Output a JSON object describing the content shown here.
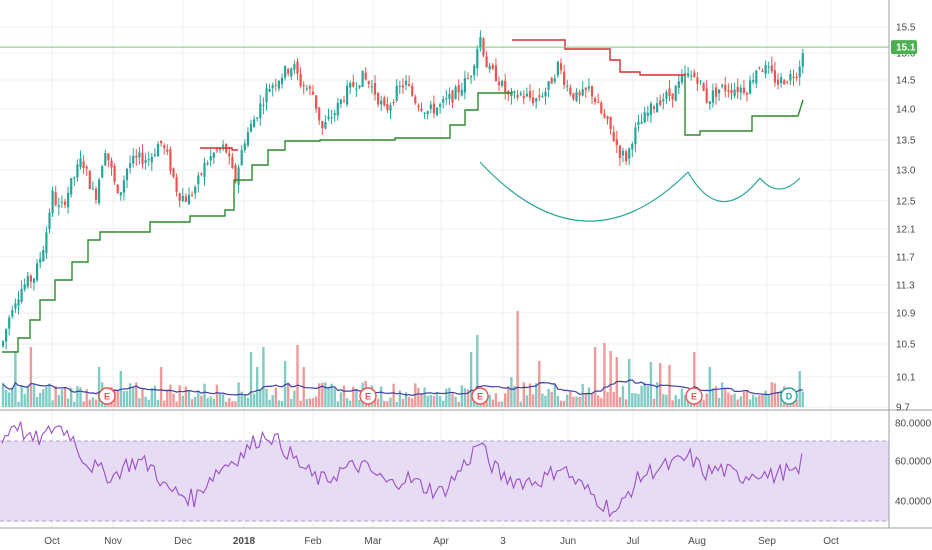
{
  "chart_data": {
    "type": "candlestick",
    "price_axis": {
      "ticks": [
        "15.5",
        "15.0",
        "14.5",
        "14.0",
        "13.5",
        "13.0",
        "12.5",
        "12.1",
        "11.7",
        "11.3",
        "10.9",
        "10.5",
        "10.1",
        "9.7"
      ],
      "current_price_label": "15.1",
      "current_price": 15.1
    },
    "rsi_axis": {
      "ticks": [
        "80.0000",
        "60.0000",
        "40.0000"
      ],
      "band_upper": 70,
      "band_lower": 30
    },
    "time_axis": [
      "Oct",
      "Nov",
      "Dec",
      "2018",
      "Feb",
      "Mar",
      "Apr",
      "3",
      "Jun",
      "Jul",
      "Aug",
      "Sep",
      "Oct"
    ],
    "time_axis_bold": [
      "2018"
    ],
    "price_series_approx": [
      {
        "month": "Oct",
        "close": 13.2
      },
      {
        "month": "Nov",
        "close": 13.5
      },
      {
        "month": "Dec",
        "close": 12.6
      },
      {
        "month": "2018",
        "close": 13.7
      },
      {
        "month": "Feb",
        "close": 14.6
      },
      {
        "month": "Mar",
        "close": 14.4
      },
      {
        "month": "Apr",
        "close": 14.2
      },
      {
        "month": "3",
        "close": 14.5
      },
      {
        "month": "Jun",
        "close": 14.4
      },
      {
        "month": "Jul",
        "close": 13.6
      },
      {
        "month": "Aug",
        "close": 14.5
      },
      {
        "month": "Sep",
        "close": 14.7
      },
      {
        "month": "end",
        "close": 15.1
      }
    ],
    "events": [
      {
        "label": "E",
        "kind": "earnings"
      },
      {
        "label": "E",
        "kind": "earnings"
      },
      {
        "label": "E",
        "kind": "earnings"
      },
      {
        "label": "E",
        "kind": "earnings"
      },
      {
        "label": "D",
        "kind": "dividend"
      }
    ],
    "colors": {
      "up": "#26a69a",
      "down": "#ef5350",
      "vol_up": "#80cbc4",
      "vol_down": "#ef9a9a",
      "stop_support": "#2e8b2e",
      "stop_resist": "#d32f2f",
      "vol_ma": "#3f3fa8",
      "rsi_line": "#9c4ec8",
      "rsi_band": "#e6dcf4",
      "pattern": "#26a69a",
      "price_line": "#7cc47c",
      "badge": "#4caf50"
    }
  }
}
